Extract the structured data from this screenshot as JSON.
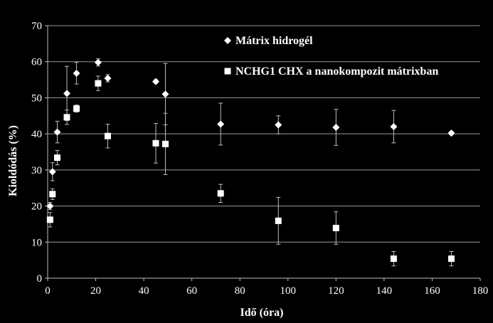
{
  "chart_data": {
    "type": "scatter",
    "title": "",
    "xlabel": "Idő (óra)",
    "ylabel": "Kioldódás (%)",
    "xlim": [
      0,
      180
    ],
    "ylim": [
      0,
      70
    ],
    "xticks": [
      "0",
      "20",
      "40",
      "60",
      "80",
      "100",
      "120",
      "140",
      "160",
      "180"
    ],
    "yticks": [
      "0",
      "10",
      "20",
      "30",
      "40",
      "50",
      "60",
      "70"
    ],
    "grid": true,
    "legend_position": "top-right",
    "background": "#000000",
    "marker_color": "#ffffff",
    "series": [
      {
        "name": "Mátrix hidrogél",
        "marker": "diamond",
        "points": [
          {
            "x": 1,
            "y": 20,
            "err": 1
          },
          {
            "x": 2,
            "y": 29.5,
            "err": 2.5
          },
          {
            "x": 4,
            "y": 40.5,
            "err": 3
          },
          {
            "x": 8,
            "y": 51.2,
            "err": 7.5
          },
          {
            "x": 12,
            "y": 56.8,
            "err": 3
          },
          {
            "x": 21,
            "y": 59.8,
            "err": 1
          },
          {
            "x": 25,
            "y": 55.4,
            "err": 1
          },
          {
            "x": 45,
            "y": 54.5,
            "err": 0.5
          },
          {
            "x": 49,
            "y": 51,
            "err": 8.5
          },
          {
            "x": 72,
            "y": 42.7,
            "err": 5.8
          },
          {
            "x": 96,
            "y": 42.5,
            "err": 2.5
          },
          {
            "x": 120,
            "y": 41.8,
            "err": 5
          },
          {
            "x": 144,
            "y": 42,
            "err": 4.5
          },
          {
            "x": 168,
            "y": 40.2,
            "err": 0.5
          }
        ]
      },
      {
        "name": "NCHG1 CHX a nanokompozit mátrixban",
        "marker": "square",
        "points": [
          {
            "x": 1,
            "y": 16.2,
            "err": 2
          },
          {
            "x": 2,
            "y": 23.3,
            "err": 1.5
          },
          {
            "x": 4,
            "y": 33.4,
            "err": 2
          },
          {
            "x": 8,
            "y": 44.6,
            "err": 2
          },
          {
            "x": 12,
            "y": 47,
            "err": 1
          },
          {
            "x": 21,
            "y": 54,
            "err": 2
          },
          {
            "x": 25,
            "y": 39.4,
            "err": 3.3
          },
          {
            "x": 45,
            "y": 37.4,
            "err": 5.5
          },
          {
            "x": 49,
            "y": 37.2,
            "err": 8.5
          },
          {
            "x": 72,
            "y": 23.5,
            "err": 2.5
          },
          {
            "x": 96,
            "y": 15.9,
            "err": 6.5
          },
          {
            "x": 120,
            "y": 13.9,
            "err": 4.5
          },
          {
            "x": 144,
            "y": 5.4,
            "err": 2
          },
          {
            "x": 168,
            "y": 5.4,
            "err": 2
          }
        ]
      }
    ]
  }
}
